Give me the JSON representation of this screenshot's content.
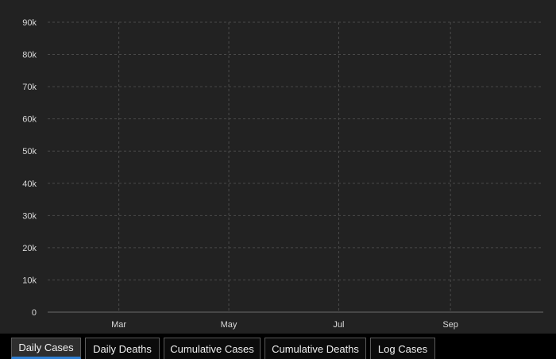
{
  "tabs": [
    {
      "label": "Daily Cases",
      "active": true
    },
    {
      "label": "Daily Deaths",
      "active": false
    },
    {
      "label": "Cumulative Cases",
      "active": false
    },
    {
      "label": "Cumulative Deaths",
      "active": false
    },
    {
      "label": "Log Cases",
      "active": false
    }
  ],
  "chart_data": {
    "type": "bar",
    "title": "",
    "xlabel": "",
    "ylabel": "",
    "color": "#ffa500",
    "grid": true,
    "ylim": [
      0,
      90000
    ],
    "yticks": [
      "0",
      "10k",
      "20k",
      "30k",
      "40k",
      "50k",
      "60k",
      "70k",
      "80k",
      "90k"
    ],
    "xticks": [
      "Mar",
      "May",
      "Jul",
      "Sep"
    ],
    "x_start": "Jan 22",
    "x_end": "Oct 16",
    "values": [
      0,
      0,
      0,
      0,
      0,
      0,
      0,
      0,
      0,
      0,
      0,
      0,
      0,
      0,
      0,
      0,
      0,
      0,
      0,
      0,
      0,
      0,
      0,
      0,
      0,
      0,
      0,
      0,
      0,
      0,
      0,
      0,
      0,
      0,
      0,
      0,
      0,
      0,
      0,
      0,
      0,
      0,
      0,
      0,
      0,
      0,
      0,
      0,
      0,
      0,
      0,
      0,
      0,
      0,
      0,
      0,
      0,
      0,
      0,
      0,
      0,
      0,
      0,
      0,
      0,
      0,
      0,
      0,
      0,
      0,
      0,
      0,
      0,
      0,
      0,
      0,
      0,
      0,
      0,
      0,
      0,
      0,
      0,
      0,
      0,
      0,
      0,
      0,
      0,
      0,
      0,
      0,
      0,
      0,
      0,
      0,
      0,
      0,
      0,
      0,
      0,
      0,
      0,
      0,
      0,
      0,
      0,
      0,
      0,
      0,
      0,
      0,
      0,
      0,
      0,
      0,
      0,
      0,
      0,
      0,
      0,
      0,
      0,
      0,
      0,
      0,
      0,
      0,
      0,
      0,
      0,
      0,
      0,
      0,
      0,
      0,
      0,
      0,
      0,
      0,
      0,
      0,
      0,
      0,
      0,
      0,
      0,
      0,
      0,
      0,
      0,
      0,
      0,
      0,
      0,
      0,
      0,
      0,
      0,
      0,
      0,
      0,
      0,
      0,
      0,
      0,
      0,
      0,
      0,
      0,
      0,
      0,
      0,
      0,
      0,
      0,
      0,
      0,
      0,
      0,
      0,
      0,
      0,
      0,
      0,
      0,
      0,
      0,
      0,
      0,
      0,
      0,
      0,
      0,
      0,
      0,
      0,
      0,
      0,
      0,
      0,
      0,
      0,
      0,
      0,
      0,
      0,
      0,
      0,
      0,
      0,
      0,
      0,
      0,
      0,
      0,
      0,
      0,
      0,
      0,
      0,
      0,
      0,
      0,
      0,
      0,
      0,
      0,
      0,
      0,
      0,
      0,
      0,
      0,
      0,
      0,
      0,
      0,
      0,
      0,
      0,
      0,
      0,
      0,
      0,
      0,
      0,
      0,
      0,
      0,
      0,
      0,
      0,
      0,
      0,
      0,
      0,
      0,
      0,
      0,
      0,
      0,
      0,
      0,
      0,
      0,
      0,
      0,
      0,
      0,
      0,
      0,
      0,
      0,
      0
    ]
  }
}
